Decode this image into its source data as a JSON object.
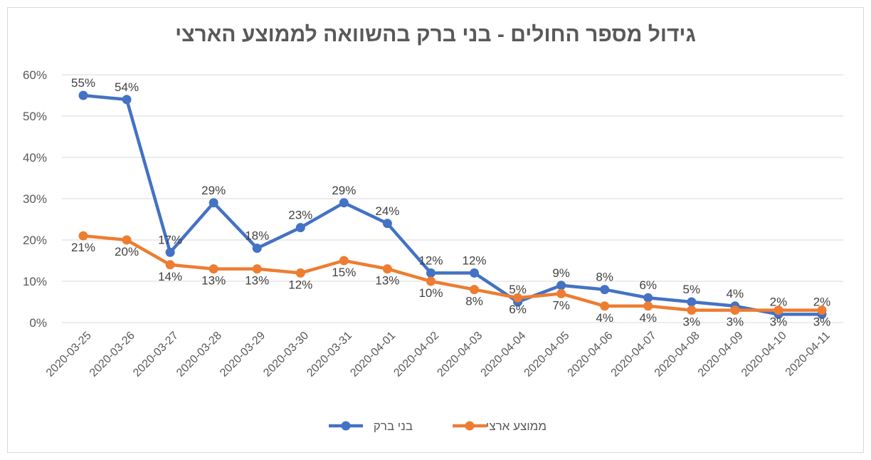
{
  "chart_data": {
    "type": "line",
    "title": "גידול מספר החולים - בני ברק בהשוואה לממוצע הארצי",
    "xlabel": "",
    "ylabel": "",
    "categories": [
      "2020-03-25",
      "2020-03-26",
      "2020-03-27",
      "2020-03-28",
      "2020-03-29",
      "2020-03-30",
      "2020-03-31",
      "2020-04-01",
      "2020-04-02",
      "2020-04-03",
      "2020-04-04",
      "2020-04-05",
      "2020-04-06",
      "2020-04-07",
      "2020-04-08",
      "2020-04-09",
      "2020-04-10",
      "2020-04-11"
    ],
    "yticks": [
      "0%",
      "10%",
      "20%",
      "30%",
      "40%",
      "50%",
      "60%"
    ],
    "ylim": [
      0,
      60
    ],
    "grid": true,
    "legend_position": "bottom",
    "series": [
      {
        "name": "בני ברק",
        "color": "#4472c4",
        "values": [
          55,
          54,
          17,
          29,
          18,
          23,
          29,
          24,
          12,
          12,
          5,
          9,
          8,
          6,
          5,
          4,
          2,
          2
        ]
      },
      {
        "name": "ממוצע ארצי",
        "color": "#ed7d31",
        "values": [
          21,
          20,
          14,
          13,
          13,
          12,
          15,
          13,
          10,
          8,
          6,
          7,
          4,
          4,
          3,
          3,
          3,
          3
        ]
      }
    ]
  }
}
